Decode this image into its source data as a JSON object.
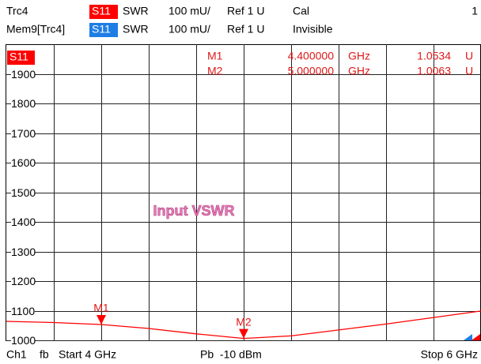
{
  "header": {
    "row1": {
      "trace": "Trc4",
      "param": "S11",
      "format": "SWR",
      "scale": "100 mU/",
      "ref": "Ref 1 U",
      "state": "Cal",
      "index": "1"
    },
    "row2": {
      "trace": "Mem9[Trc4]",
      "param": "S11",
      "format": "SWR",
      "scale": "100 mU/",
      "ref": "Ref 1 U",
      "state": "Invisible"
    }
  },
  "chart_data": {
    "type": "line",
    "title": "Input VSWR",
    "x": [
      4.0,
      4.2,
      4.4,
      4.6,
      4.8,
      5.0,
      5.2,
      5.4,
      5.6,
      5.8,
      6.0
    ],
    "series": [
      {
        "name": "S11",
        "color": "#ff0000",
        "values": [
          1064,
          1060,
          1053.4,
          1040,
          1022,
          1006.3,
          1015,
          1035,
          1055,
          1077,
          1099
        ]
      }
    ],
    "xlim": [
      4,
      6
    ],
    "ylim": [
      1000,
      2000
    ],
    "yticks": [
      1000,
      1100,
      1200,
      1300,
      1400,
      1500,
      1600,
      1700,
      1800,
      1900
    ],
    "grid": true,
    "markers": [
      {
        "name": "M1",
        "x": 4.4,
        "y": 1053.4,
        "freq": "4.400000",
        "freq_unit": "GHz",
        "value_label": "1.0534",
        "unit": "U"
      },
      {
        "name": "M2",
        "x": 5.0,
        "y": 1006.3,
        "freq": "5.000000",
        "freq_unit": "GHz",
        "value_label": "1.0063",
        "unit": "U"
      }
    ]
  },
  "footer": {
    "channel": "Ch1",
    "mode": "fb",
    "start": "Start 4 GHz",
    "power": "Pb  -10 dBm",
    "stop": "Stop 6 GHz"
  }
}
